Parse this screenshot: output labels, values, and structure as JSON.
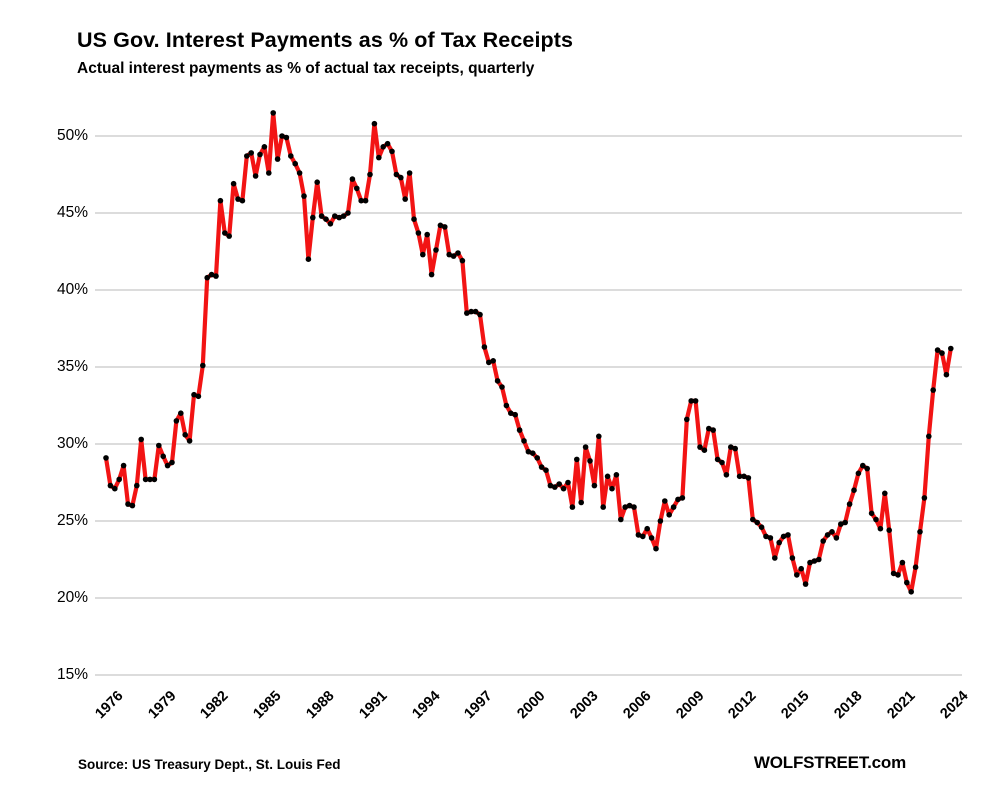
{
  "header": {
    "title": "US Gov. Interest Payments as % of Tax Receipts",
    "subtitle": "Actual interest payments as % of actual tax receipts, quarterly"
  },
  "footer": {
    "source": "Source: US Treasury Dept., St. Louis Fed",
    "brand": "WOLFSTREET.com"
  },
  "chart_data": {
    "type": "line",
    "title": "US Gov. Interest Payments as % of Tax Receipts",
    "subtitle": "Actual interest payments as % of actual tax receipts, quarterly",
    "unit": "%",
    "grid": "horizontal-only",
    "legend_position": "none",
    "line_color": "#f21414",
    "marker_color": "#000000",
    "grid_color": "#dcdcdc",
    "background_color": "#ffffff",
    "ylim": [
      15,
      52
    ],
    "y_ticks": [
      50,
      45,
      40,
      35,
      30,
      25,
      20,
      15
    ],
    "x_ticks": [
      1976,
      1979,
      1982,
      1985,
      1988,
      1991,
      1994,
      1997,
      2000,
      2003,
      2006,
      2009,
      2012,
      2015,
      2018,
      2021,
      2024
    ],
    "series": [
      {
        "name": "Interest payments as % of tax receipts",
        "frequency": "quarterly",
        "start": "1976Q1",
        "end": "2024Q1",
        "values": [
          29.1,
          27.3,
          27.1,
          27.7,
          28.6,
          26.1,
          26.0,
          27.3,
          30.3,
          27.7,
          27.7,
          27.7,
          29.9,
          29.2,
          28.6,
          28.8,
          31.5,
          32.0,
          30.6,
          30.2,
          33.2,
          33.1,
          35.1,
          40.8,
          41.0,
          40.9,
          45.8,
          43.7,
          43.5,
          46.9,
          45.9,
          45.8,
          48.7,
          48.9,
          47.4,
          48.8,
          49.3,
          47.6,
          51.5,
          48.5,
          50.0,
          49.9,
          48.7,
          48.2,
          47.6,
          46.1,
          42.0,
          44.7,
          47.0,
          44.8,
          44.6,
          44.3,
          44.8,
          44.7,
          44.8,
          45.0,
          47.2,
          46.6,
          45.8,
          45.8,
          47.5,
          50.8,
          48.6,
          49.3,
          49.5,
          49.0,
          47.5,
          47.3,
          45.9,
          47.6,
          44.6,
          43.7,
          42.3,
          43.6,
          41.0,
          42.6,
          44.2,
          44.1,
          42.3,
          42.2,
          42.4,
          41.9,
          38.5,
          38.6,
          38.6,
          38.4,
          36.3,
          35.3,
          35.4,
          34.1,
          33.7,
          32.5,
          32.0,
          31.9,
          30.9,
          30.2,
          29.5,
          29.4,
          29.1,
          28.5,
          28.3,
          27.3,
          27.2,
          27.4,
          27.1,
          27.5,
          25.9,
          29.0,
          26.2,
          29.8,
          28.9,
          27.3,
          30.5,
          25.9,
          27.9,
          27.1,
          28.0,
          25.1,
          25.9,
          26.0,
          25.9,
          24.1,
          24.0,
          24.5,
          23.9,
          23.2,
          25.0,
          26.3,
          25.4,
          25.9,
          26.4,
          26.5,
          31.6,
          32.8,
          32.8,
          29.8,
          29.6,
          31.0,
          30.9,
          29.0,
          28.8,
          28.0,
          29.8,
          29.7,
          27.9,
          27.9,
          27.8,
          25.1,
          24.9,
          24.6,
          24.0,
          23.9,
          22.6,
          23.6,
          24.0,
          24.1,
          22.6,
          21.5,
          21.9,
          20.9,
          22.3,
          22.4,
          22.5,
          23.7,
          24.1,
          24.3,
          23.9,
          24.8,
          24.9,
          26.1,
          27.0,
          28.1,
          28.6,
          28.4,
          25.5,
          25.1,
          24.5,
          26.8,
          24.4,
          21.6,
          21.5,
          22.3,
          21.0,
          20.4,
          22.0,
          24.3,
          26.5,
          30.5,
          33.5,
          36.1,
          35.9,
          34.5,
          36.2
        ]
      }
    ]
  }
}
